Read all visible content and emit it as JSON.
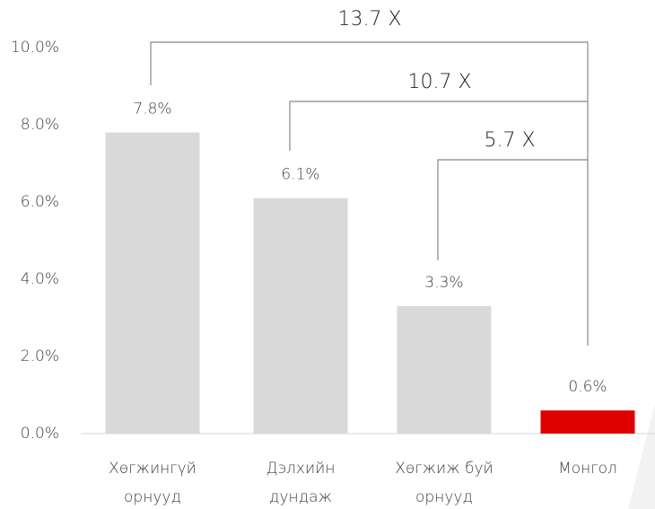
{
  "chart_data": {
    "type": "bar",
    "categories": [
      [
        "Хөгжингүй",
        "орнууд"
      ],
      [
        "Дэлхийн",
        "дундаж"
      ],
      [
        "Хөгжиж буй",
        "орнууд"
      ],
      [
        "Монгол"
      ]
    ],
    "values": [
      7.8,
      6.1,
      3.3,
      0.6
    ],
    "value_labels": [
      "7.8%",
      "6.1%",
      "3.3%",
      "0.6%"
    ],
    "colors": [
      "#d9d9d9",
      "#d9d9d9",
      "#d9d9d9",
      "#e00000"
    ],
    "ylim": [
      0,
      10
    ],
    "yticks": [
      {
        "value": 0,
        "label": "0.0%"
      },
      {
        "value": 2,
        "label": "2.0%"
      },
      {
        "value": 4,
        "label": "4.0%"
      },
      {
        "value": 6,
        "label": "6.0%"
      },
      {
        "value": 8,
        "label": "8.0%"
      },
      {
        "value": 10,
        "label": "10.0%"
      }
    ],
    "annotations": [
      "13.7 X",
      "10.7 X",
      "5.7 X"
    ]
  }
}
